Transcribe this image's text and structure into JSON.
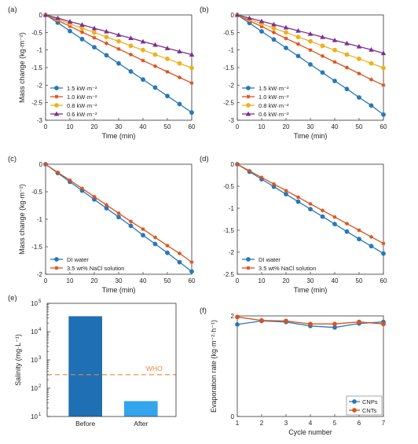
{
  "chart_data": [
    {
      "type": "line",
      "panel_label": "(a)",
      "xlabel": "Time (min)",
      "ylabel": "Mass change (kg·m⁻²)",
      "xlim": [
        0,
        60
      ],
      "ylim": [
        -3,
        0
      ],
      "xticks": [
        0,
        10,
        20,
        30,
        40,
        50,
        60
      ],
      "yticks": [
        0,
        -0.5,
        -1,
        -1.5,
        -2,
        -2.5,
        -3
      ],
      "ytick_labels": [
        "0",
        "-0.5",
        "-1",
        "-1.5",
        "-2",
        "-2.5",
        "-3"
      ],
      "grid": false,
      "legend": "bottom-left",
      "x": [
        0,
        5,
        10,
        15,
        20,
        25,
        30,
        35,
        40,
        45,
        50,
        55,
        60
      ],
      "series": [
        {
          "name": "1.5 kW·m⁻²",
          "color": "#2878b8",
          "marker": "circle",
          "values": [
            0,
            -0.22,
            -0.46,
            -0.69,
            -0.92,
            -1.15,
            -1.38,
            -1.61,
            -1.84,
            -2.07,
            -2.31,
            -2.54,
            -2.78
          ]
        },
        {
          "name": "1.0 kW·m⁻²",
          "color": "#d9531e",
          "marker": "star",
          "values": [
            0,
            -0.16,
            -0.32,
            -0.49,
            -0.65,
            -0.81,
            -0.97,
            -1.13,
            -1.3,
            -1.46,
            -1.62,
            -1.78,
            -1.94
          ]
        },
        {
          "name": "0.8 kW·m⁻²",
          "color": "#edb120",
          "marker": "circle",
          "values": [
            0,
            -0.12,
            -0.25,
            -0.38,
            -0.5,
            -0.63,
            -0.75,
            -0.88,
            -1.0,
            -1.13,
            -1.25,
            -1.38,
            -1.51
          ]
        },
        {
          "name": "0.6 kW·m⁻²",
          "color": "#7e2f8e",
          "marker": "triangle",
          "values": [
            0,
            -0.09,
            -0.19,
            -0.28,
            -0.38,
            -0.47,
            -0.57,
            -0.66,
            -0.76,
            -0.85,
            -0.95,
            -1.04,
            -1.13
          ]
        }
      ]
    },
    {
      "type": "line",
      "panel_label": "(b)",
      "xlabel": "Time (min)",
      "ylabel": "",
      "xlim": [
        0,
        60
      ],
      "ylim": [
        -3,
        0
      ],
      "xticks": [
        0,
        10,
        20,
        30,
        40,
        50,
        60
      ],
      "yticks": [
        0,
        -0.5,
        -1,
        -1.5,
        -2,
        -2.5,
        -3
      ],
      "ytick_labels": [
        "0",
        "-0.5",
        "-1",
        "-1.5",
        "-2",
        "-2.5",
        "-3"
      ],
      "grid": false,
      "legend": "bottom-left",
      "x": [
        0,
        5,
        10,
        15,
        20,
        25,
        30,
        35,
        40,
        45,
        50,
        55,
        60
      ],
      "series": [
        {
          "name": "1.5 kW·m⁻²",
          "color": "#2878b8",
          "marker": "circle",
          "values": [
            0,
            -0.23,
            -0.47,
            -0.7,
            -0.94,
            -1.17,
            -1.41,
            -1.64,
            -1.88,
            -2.11,
            -2.35,
            -2.58,
            -2.84
          ]
        },
        {
          "name": "1.0 kW·m⁻²",
          "color": "#d9531e",
          "marker": "star",
          "values": [
            0,
            -0.17,
            -0.33,
            -0.5,
            -0.67,
            -0.83,
            -1.0,
            -1.17,
            -1.34,
            -1.5,
            -1.67,
            -1.84,
            -2.0
          ]
        },
        {
          "name": "0.8 kW·m⁻²",
          "color": "#edb120",
          "marker": "circle",
          "values": [
            0,
            -0.13,
            -0.25,
            -0.38,
            -0.5,
            -0.63,
            -0.75,
            -0.88,
            -1.0,
            -1.13,
            -1.25,
            -1.38,
            -1.51
          ]
        },
        {
          "name": "0.6 kW·m⁻²",
          "color": "#7e2f8e",
          "marker": "triangle",
          "values": [
            0,
            -0.09,
            -0.18,
            -0.27,
            -0.36,
            -0.45,
            -0.54,
            -0.63,
            -0.72,
            -0.81,
            -0.9,
            -0.99,
            -1.09
          ]
        }
      ]
    },
    {
      "type": "line",
      "panel_label": "(c)",
      "xlabel": "Time (min)",
      "ylabel": "Mass change (kg·m⁻²)",
      "xlim": [
        0,
        60
      ],
      "ylim": [
        -2,
        0
      ],
      "xticks": [
        0,
        10,
        20,
        30,
        40,
        50,
        60
      ],
      "yticks": [
        0,
        -0.5,
        -1,
        -1.5,
        -2
      ],
      "ytick_labels": [
        "0",
        "-0.5",
        "-1",
        "-1.5",
        "-2"
      ],
      "grid": false,
      "legend": "bottom-left",
      "x": [
        0,
        5,
        10,
        15,
        20,
        25,
        30,
        35,
        40,
        45,
        50,
        55,
        60
      ],
      "series": [
        {
          "name": "DI water",
          "color": "#2878b8",
          "marker": "circle",
          "values": [
            0,
            -0.16,
            -0.32,
            -0.48,
            -0.64,
            -0.8,
            -0.96,
            -1.12,
            -1.29,
            -1.45,
            -1.61,
            -1.78,
            -1.95
          ]
        },
        {
          "name": "3.5 wt% NaCl solution",
          "color": "#d9531e",
          "marker": "star",
          "values": [
            0,
            -0.15,
            -0.29,
            -0.44,
            -0.59,
            -0.74,
            -0.89,
            -1.04,
            -1.18,
            -1.33,
            -1.48,
            -1.62,
            -1.78
          ]
        }
      ]
    },
    {
      "type": "line",
      "panel_label": "(d)",
      "xlabel": "Time (min)",
      "ylabel": "",
      "xlim": [
        0,
        60
      ],
      "ylim": [
        -2.5,
        0
      ],
      "xticks": [
        0,
        10,
        20,
        30,
        40,
        50,
        60
      ],
      "yticks": [
        0,
        -0.5,
        -1,
        -1.5,
        -2,
        -2.5
      ],
      "ytick_labels": [
        "0",
        "-0.5",
        "-1",
        "-1.5",
        "-2",
        "-2.5"
      ],
      "grid": false,
      "legend": "bottom-left",
      "x": [
        0,
        5,
        10,
        15,
        20,
        25,
        30,
        35,
        40,
        45,
        50,
        55,
        60
      ],
      "series": [
        {
          "name": "DI water",
          "color": "#2878b8",
          "marker": "circle",
          "values": [
            0,
            -0.17,
            -0.34,
            -0.51,
            -0.68,
            -0.85,
            -1.02,
            -1.19,
            -1.36,
            -1.53,
            -1.7,
            -1.86,
            -2.03
          ]
        },
        {
          "name": "3.5 wt% NaCl solution",
          "color": "#d9531e",
          "marker": "star",
          "values": [
            0,
            -0.15,
            -0.3,
            -0.45,
            -0.6,
            -0.75,
            -0.9,
            -1.05,
            -1.2,
            -1.35,
            -1.5,
            -1.65,
            -1.8
          ]
        }
      ]
    },
    {
      "type": "bar",
      "panel_label": "(e)",
      "ylabel": "Salinity (mg·L⁻¹)",
      "xlabel": "",
      "yscale": "log",
      "ylim": [
        10,
        100000
      ],
      "yticks": [
        10,
        100,
        1000,
        10000,
        100000
      ],
      "ytick_labels": [
        "10",
        "10",
        "10",
        "10",
        "10"
      ],
      "ytick_exponents": [
        "1",
        "2",
        "3",
        "4",
        "5"
      ],
      "grid": false,
      "categories": [
        "Before",
        "After"
      ],
      "values": [
        35000,
        35
      ],
      "colors": [
        "#1f6fb4",
        "#33a4ee"
      ],
      "annotation": {
        "text": "WHO",
        "value": 300,
        "color": "#e8873a",
        "style": "dashed"
      }
    },
    {
      "type": "line",
      "panel_label": "(f)",
      "xlabel": "Cycle number",
      "ylabel": "Evaporation rate (kg·m⁻²·h⁻¹)",
      "xlim": [
        1,
        7
      ],
      "ylim": [
        0,
        2
      ],
      "xticks": [
        1,
        2,
        3,
        4,
        5,
        6,
        7
      ],
      "yticks": [
        0,
        2
      ],
      "ytick_labels": [
        "0",
        "2"
      ],
      "grid": false,
      "legend": "bottom-right",
      "x": [
        1,
        2,
        3,
        4,
        5,
        6,
        7
      ],
      "series": [
        {
          "name": "CNPs",
          "color": "#2878b8",
          "marker": "circle",
          "values": [
            1.83,
            1.9,
            1.88,
            1.8,
            1.77,
            1.85,
            1.88
          ]
        },
        {
          "name": "CNTs",
          "color": "#d9531e",
          "marker": "circle",
          "values": [
            1.98,
            1.91,
            1.9,
            1.84,
            1.84,
            1.88,
            1.84
          ]
        }
      ]
    }
  ]
}
